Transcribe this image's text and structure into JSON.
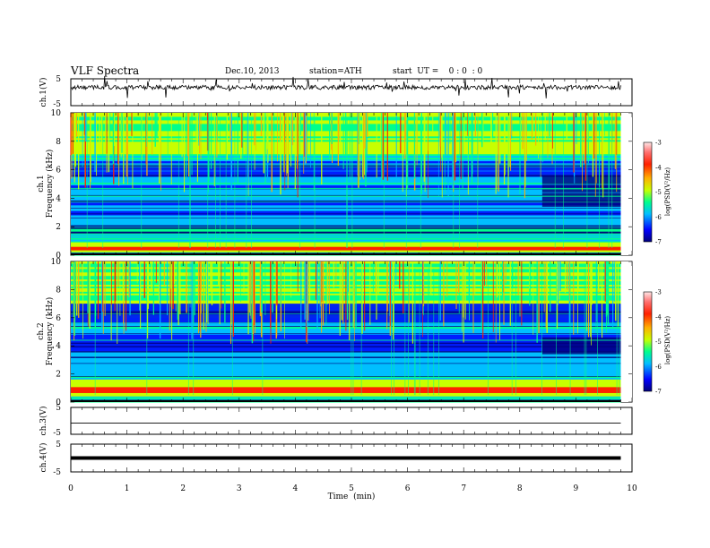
{
  "header": {
    "title": "VLF  Spectra",
    "date": "Dec.10, 2013",
    "station": "station=ATH",
    "start": "start  UT =    0 : 0  : 0"
  },
  "chart_data": [
    {
      "type": "line",
      "panel": "ch1-waveform",
      "ylabel": "ch.1(V)",
      "ylim": [
        -5,
        5
      ],
      "y_ticks": [
        "5",
        "-5"
      ],
      "x_range_min": [
        0,
        9.8
      ],
      "trace_level_V": 1.8
    },
    {
      "type": "heatmap",
      "panel": "ch1-spectrogram",
      "ylabel": "ch.1",
      "ylabel2": "Frequency  (kHz)",
      "ylim": [
        0,
        10
      ],
      "y_ticks": [
        "0",
        "2",
        "4",
        "6",
        "8",
        "10"
      ],
      "x_range_min": [
        0,
        9.8
      ],
      "colorbar": {
        "label": "log(PSD(V²/Hz)",
        "range": [
          -7,
          -3
        ],
        "ticks": [
          "-3",
          "-4",
          "-5",
          "-6",
          "-7"
        ]
      },
      "low_noise_bands_khz": [
        [
          2.8,
          3.1
        ],
        [
          3.5,
          3.7
        ],
        [
          4.6,
          4.9
        ],
        [
          5.5,
          6.6
        ]
      ],
      "quiet_region": {
        "t_min": [
          8.4,
          9.8
        ],
        "f_khz": [
          3.4,
          5.6
        ]
      },
      "strong_low_band_khz": [
        0.2,
        0.9
      ]
    },
    {
      "type": "heatmap",
      "panel": "ch2-spectrogram",
      "ylabel": "ch.2",
      "ylabel2": "Frequency  (kHz)",
      "ylim": [
        0,
        10
      ],
      "y_ticks": [
        "0",
        "2",
        "4",
        "6",
        "8",
        "10"
      ],
      "x_range_min": [
        0,
        9.8
      ],
      "colorbar": {
        "label": "log(PSD(V²/Hz)",
        "range": [
          -7,
          -3
        ],
        "ticks": [
          "-3",
          "-4",
          "-5",
          "-6",
          "-7"
        ]
      },
      "low_noise_bands_khz": [
        [
          3.6,
          4.8
        ],
        [
          5.6,
          7.0
        ]
      ],
      "quiet_region": {
        "t_min": [
          8.4,
          9.8
        ],
        "f_khz": [
          3.4,
          4.6
        ]
      },
      "strong_low_band_khz": [
        0.4,
        1.6
      ]
    },
    {
      "type": "line",
      "panel": "ch3-waveform",
      "ylabel": "ch.3(V)",
      "ylim": [
        -5,
        5
      ],
      "y_ticks": [
        "5",
        "-5"
      ],
      "x_range_min": [
        0,
        9.8
      ],
      "trace_level_V": -0.8
    },
    {
      "type": "line",
      "panel": "ch4-waveform",
      "ylabel": "ch.4(V)",
      "ylim": [
        -5,
        5
      ],
      "y_ticks": [
        "5",
        "-5"
      ],
      "x_range_min": [
        0,
        9.8
      ],
      "trace_level_V": 0
    }
  ],
  "x_axis": {
    "label": "Time  (min)",
    "range": [
      0,
      10
    ],
    "ticks": [
      "0",
      "1",
      "2",
      "3",
      "4",
      "5",
      "6",
      "7",
      "8",
      "9",
      "10"
    ]
  },
  "colors": {
    "spectrogram_scale": [
      "#00007a",
      "#0000ff",
      "#00bfff",
      "#00ff8c",
      "#c8ff00",
      "#ffb000",
      "#ff2000",
      "#ff7070",
      "#ffe6e6"
    ]
  }
}
